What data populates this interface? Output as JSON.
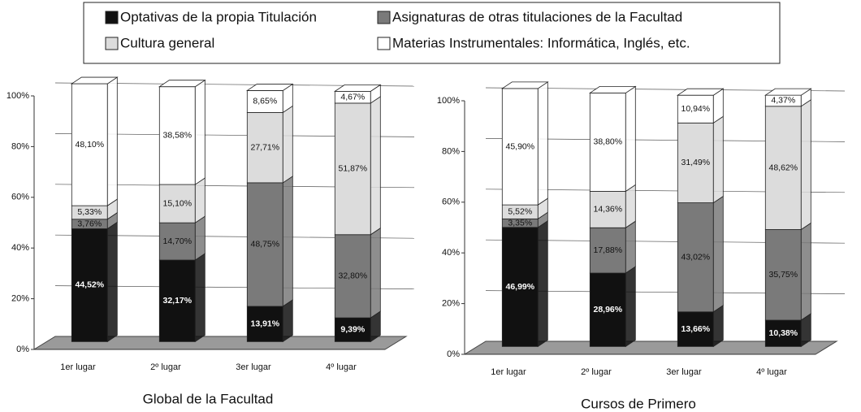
{
  "chart_data": [
    {
      "type": "bar3d_stacked",
      "title": "Global de la Facultad",
      "categories": [
        "1er lugar",
        "2º lugar",
        "3er lugar",
        "4º lugar"
      ],
      "ylim": [
        0,
        100
      ],
      "yticks": [
        {
          "value": 0,
          "label": "0%"
        },
        {
          "value": 20,
          "label": "20%"
        },
        {
          "value": 40,
          "label": "40%"
        },
        {
          "value": 60,
          "label": "60%"
        },
        {
          "value": 80,
          "label": "80%"
        },
        {
          "value": 100,
          "label": "100%"
        }
      ],
      "grid": true,
      "series": [
        {
          "name": "Optativas de la propia Titulación",
          "color": "#111111",
          "values": [
            44.52,
            32.17,
            13.91,
            9.39
          ],
          "value_labels": [
            "44,52%",
            "32,17%",
            "13,91%",
            "9,39%"
          ]
        },
        {
          "name": "Asignaturas de otras titulaciones de la Facultad",
          "color": "#7a7a7a",
          "values": [
            3.76,
            14.7,
            48.75,
            32.8
          ],
          "value_labels": [
            "3,76%",
            "14,70%",
            "48,75%",
            "32,80%"
          ]
        },
        {
          "name": "Cultura general",
          "color": "#dcdcdc",
          "values": [
            5.33,
            15.1,
            27.71,
            51.87
          ],
          "value_labels": [
            "5,33%",
            "15,10%",
            "27,71%",
            "51,87%"
          ]
        },
        {
          "name": "Materias Instrumentales: Informática, Inglés, etc.",
          "color": "#ffffff",
          "values": [
            48.1,
            38.58,
            8.65,
            4.67
          ],
          "value_labels": [
            "48,10%",
            "38,58%",
            "8,65%",
            "4,67%"
          ]
        }
      ]
    },
    {
      "type": "bar3d_stacked",
      "title": "Cursos de Primero",
      "categories": [
        "1er lugar",
        "2º lugar",
        "3er lugar",
        "4º lugar"
      ],
      "ylim": [
        0,
        100
      ],
      "yticks": [
        {
          "value": 0,
          "label": "0%"
        },
        {
          "value": 20,
          "label": "20%"
        },
        {
          "value": 40,
          "label": "40%"
        },
        {
          "value": 60,
          "label": "60%"
        },
        {
          "value": 80,
          "label": "80%"
        },
        {
          "value": 100,
          "label": "100%"
        }
      ],
      "grid": true,
      "series": [
        {
          "color": "#111111",
          "values": [
            46.99,
            28.96,
            13.66,
            10.38
          ],
          "value_labels": [
            "46,99%",
            "28,96%",
            "13,66%",
            "10,38%"
          ]
        },
        {
          "color": "#7a7a7a",
          "values": [
            3.35,
            17.88,
            43.02,
            35.75
          ],
          "value_labels": [
            "3,35%",
            "17,88%",
            "43,02%",
            "35,75%"
          ]
        },
        {
          "color": "#dcdcdc",
          "values": [
            5.52,
            14.36,
            31.49,
            48.62
          ],
          "value_labels": [
            "5,52%",
            "14,36%",
            "31,49%",
            "48,62%"
          ]
        },
        {
          "color": "#ffffff",
          "values": [
            45.9,
            38.8,
            10.94,
            4.37
          ],
          "value_labels": [
            "45,90%",
            "38,80%",
            "10,94%",
            "4,37%"
          ]
        }
      ]
    }
  ]
}
